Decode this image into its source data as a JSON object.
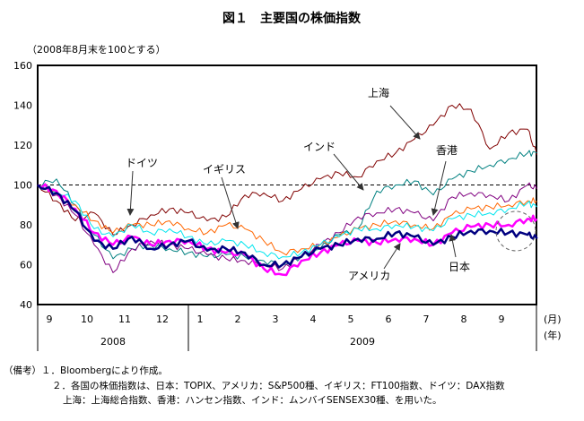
{
  "chart_data": {
    "type": "line",
    "title": "図１　主要国の株価指数",
    "ylabel": "（2008年8月末を100とする）",
    "ylim": [
      40,
      160
    ],
    "yticks": [
      "160",
      "140",
      "120",
      "100",
      "80",
      "60",
      "40"
    ],
    "reference_line": 100,
    "x_unit_months": "(月)",
    "x_unit_years": "(年)",
    "month_ticks": [
      "9",
      "10",
      "11",
      "12",
      "1",
      "2",
      "3",
      "4",
      "5",
      "6",
      "7",
      "8",
      "9"
    ],
    "years": [
      "2008",
      "2009"
    ],
    "x_months_from_aug_2008": [
      0,
      0.5,
      1,
      1.5,
      2,
      2.5,
      3,
      3.5,
      4,
      4.5,
      5,
      5.5,
      6,
      6.5,
      7,
      7.5,
      8,
      8.5,
      9,
      9.5,
      10,
      10.5,
      11,
      11.5,
      12,
      12.5,
      13,
      13.25
    ],
    "series": [
      {
        "name": "上海",
        "color": "#800000",
        "width": 1,
        "values": [
          100,
          92,
          82,
          86,
          75,
          80,
          85,
          88,
          86,
          82,
          84,
          95,
          96,
          92,
          98,
          103,
          106,
          104,
          112,
          116,
          123,
          130,
          140,
          138,
          118,
          126,
          128,
          115
        ]
      },
      {
        "name": "インド",
        "color": "#008080",
        "width": 1,
        "values": [
          100,
          103,
          90,
          75,
          63,
          68,
          70,
          68,
          66,
          64,
          65,
          64,
          62,
          60,
          64,
          68,
          75,
          78,
          97,
          100,
          102,
          95,
          103,
          107,
          110,
          113,
          116,
          116
        ]
      },
      {
        "name": "香港",
        "color": "#800080",
        "width": 1,
        "values": [
          100,
          95,
          85,
          70,
          56,
          68,
          72,
          70,
          68,
          65,
          63,
          62,
          60,
          58,
          64,
          70,
          76,
          84,
          86,
          88,
          86,
          82,
          94,
          96,
          95,
          92,
          100,
          98
        ]
      },
      {
        "name": "イギリス",
        "color": "#ff6600",
        "width": 1,
        "values": [
          100,
          96,
          90,
          82,
          76,
          80,
          80,
          82,
          78,
          76,
          80,
          78,
          72,
          66,
          68,
          70,
          74,
          78,
          80,
          82,
          80,
          78,
          85,
          88,
          89,
          90,
          92,
          92
        ]
      },
      {
        "name": "ドイツ",
        "color": "#00e5ee",
        "width": 1,
        "values": [
          100,
          97,
          92,
          78,
          74,
          80,
          76,
          78,
          74,
          70,
          72,
          70,
          66,
          64,
          66,
          70,
          74,
          78,
          78,
          80,
          79,
          77,
          83,
          85,
          86,
          88,
          91,
          89
        ]
      },
      {
        "name": "アメリカ",
        "color": "#ff00ff",
        "width": 2.5,
        "values": [
          100,
          97,
          88,
          76,
          70,
          74,
          70,
          72,
          72,
          68,
          66,
          65,
          58,
          55,
          62,
          66,
          70,
          72,
          71,
          73,
          73,
          70,
          76,
          79,
          80,
          80,
          83,
          83
        ]
      },
      {
        "name": "日本",
        "color": "#000080",
        "width": 2.5,
        "values": [
          100,
          96,
          87,
          72,
          68,
          74,
          68,
          70,
          72,
          67,
          68,
          66,
          60,
          60,
          64,
          68,
          70,
          73,
          73,
          76,
          74,
          70,
          74,
          77,
          77,
          76,
          75,
          73
        ]
      }
    ]
  },
  "notes": {
    "prefix": "（備考）",
    "line1": "１．Bloombergにより作成。",
    "line2": "２．各国の株価指数は、日本：TOPIX、アメリカ：S&P500種、イギリス：FT100指数、ドイツ：DAX指数",
    "line3": "上海：上海総合指数、香港：ハンセン指数、インド：ムンバイSENSEX30種、を用いた。"
  }
}
